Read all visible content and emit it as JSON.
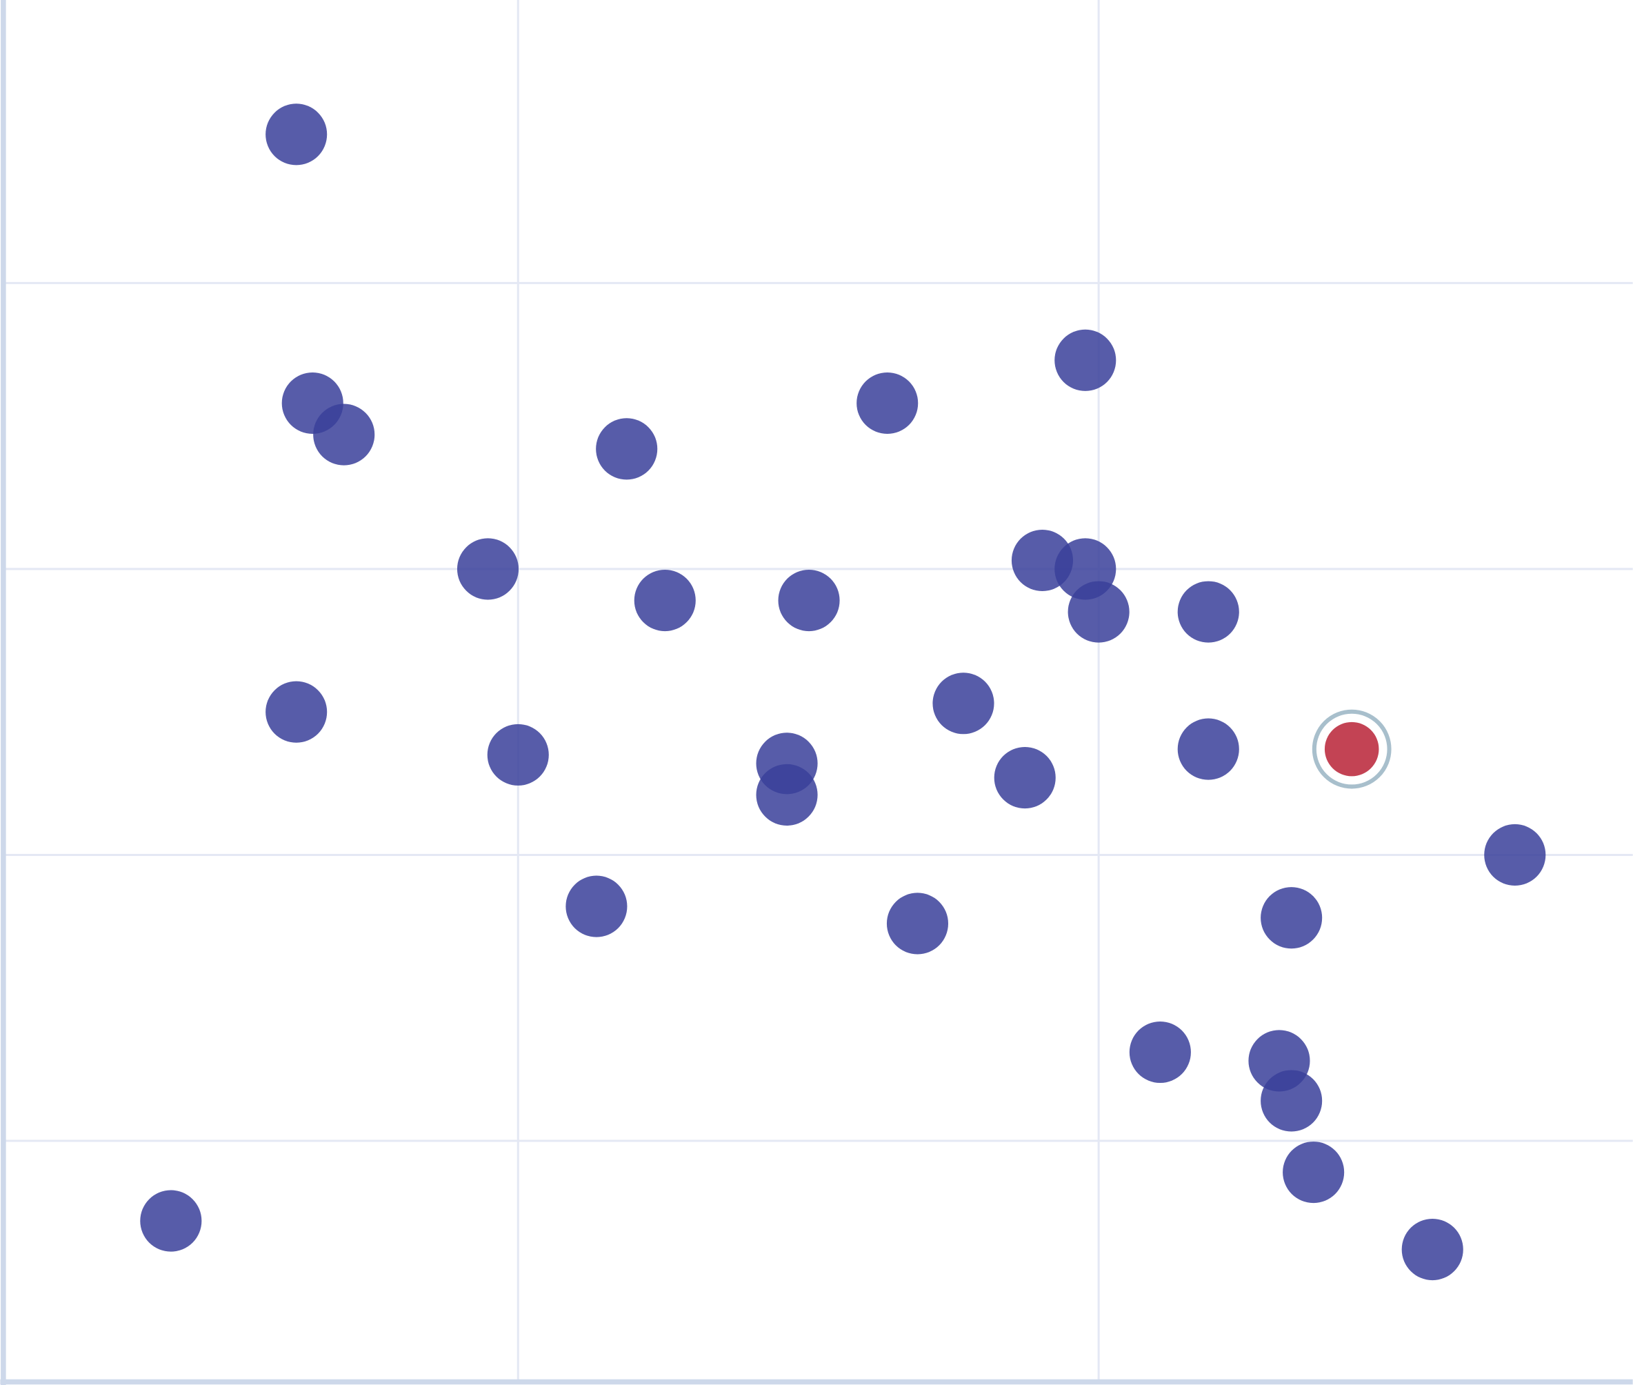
{
  "chart_data": {
    "type": "scatter",
    "title": "",
    "xlabel": "",
    "ylabel": "",
    "xlim": [
      0.117,
      2.92
    ],
    "ylim": [
      0.157,
      4.99
    ],
    "x_gridlines": [
      1,
      2
    ],
    "y_gridlines": [
      1,
      2,
      3,
      4
    ],
    "grid": true,
    "legend": "none",
    "colors": {
      "point": "#3a3f9a",
      "highlight": "#c0394b",
      "highlight_ring": "#a8bfcc",
      "axis": "#cdd8ea",
      "grid": "#e4e8f4"
    },
    "points": [
      {
        "x": 0.618,
        "y": 4.52
      },
      {
        "x": 0.646,
        "y": 3.58
      },
      {
        "x": 0.7,
        "y": 3.47
      },
      {
        "x": 1.187,
        "y": 3.42
      },
      {
        "x": 1.636,
        "y": 3.58
      },
      {
        "x": 1.977,
        "y": 3.73
      },
      {
        "x": 0.948,
        "y": 3.0
      },
      {
        "x": 1.253,
        "y": 2.89
      },
      {
        "x": 1.501,
        "y": 2.89
      },
      {
        "x": 1.903,
        "y": 3.03
      },
      {
        "x": 1.977,
        "y": 3.0
      },
      {
        "x": 2.0,
        "y": 2.85
      },
      {
        "x": 2.189,
        "y": 2.85
      },
      {
        "x": 0.618,
        "y": 2.5
      },
      {
        "x": 1.0,
        "y": 2.35
      },
      {
        "x": 1.463,
        "y": 2.32
      },
      {
        "x": 1.463,
        "y": 2.21
      },
      {
        "x": 1.767,
        "y": 2.53
      },
      {
        "x": 1.873,
        "y": 2.27
      },
      {
        "x": 2.189,
        "y": 2.37
      },
      {
        "x": 2.436,
        "y": 2.37,
        "highlighted": true
      },
      {
        "x": 2.717,
        "y": 2.0
      },
      {
        "x": 1.135,
        "y": 1.82
      },
      {
        "x": 1.688,
        "y": 1.76
      },
      {
        "x": 2.332,
        "y": 1.78
      },
      {
        "x": 2.106,
        "y": 1.31
      },
      {
        "x": 2.311,
        "y": 1.28
      },
      {
        "x": 2.332,
        "y": 1.14
      },
      {
        "x": 2.37,
        "y": 0.89
      },
      {
        "x": 0.402,
        "y": 0.72
      },
      {
        "x": 2.575,
        "y": 0.62
      }
    ]
  }
}
